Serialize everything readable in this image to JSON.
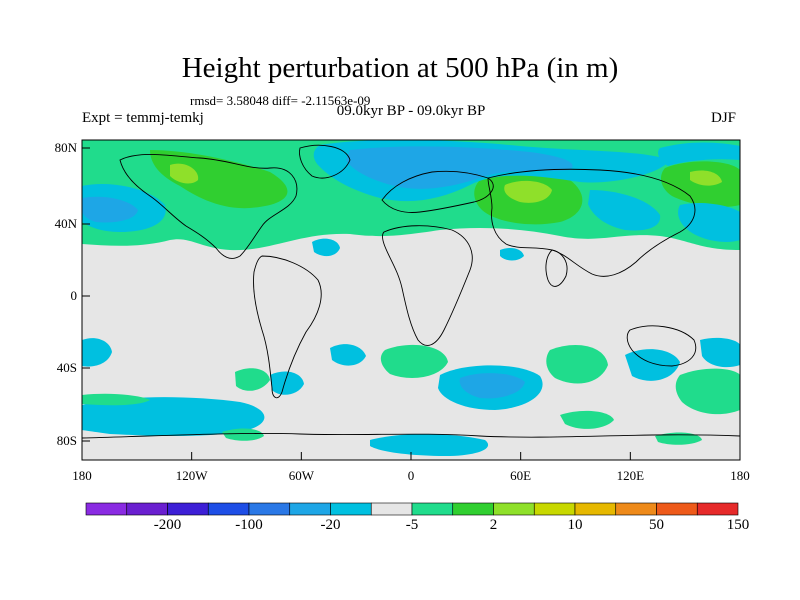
{
  "header": {
    "title": "Height perturbation at 500 hPa (in m)",
    "stats": "rmsd= 3.58048 diff= -2.11563e-09",
    "experiment": "Expt = temmj-temkj",
    "period": "09.0kyr BP - 09.0kyr BP",
    "season": "DJF"
  },
  "map": {
    "projection": "cylindrical-equidistant",
    "lon_ticks": [
      "180",
      "120W",
      "60W",
      "0",
      "60E",
      "120E",
      "180"
    ],
    "lat_ticks": [
      "80N",
      "40N",
      "0",
      "40S",
      "80S"
    ],
    "background_color": "#e6e6e6"
  },
  "colorbar": {
    "labels": [
      "-200",
      "-100",
      "-20",
      "-5",
      "2",
      "10",
      "50",
      "150"
    ],
    "colors": [
      "#8a2be2",
      "#6a1fd0",
      "#3d1fd6",
      "#1e4ee6",
      "#2a78e6",
      "#1ea6e6",
      "#00c0e0",
      "#e6e6e6",
      "#20dc8c",
      "#30cf30",
      "#8fe02a",
      "#c8d800",
      "#e6b800",
      "#ee8a1a",
      "#ee5a1a",
      "#e62a2a"
    ]
  }
}
